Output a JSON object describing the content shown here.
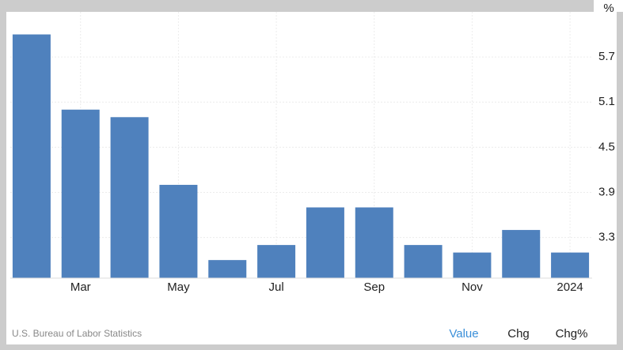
{
  "chart_data": {
    "type": "bar",
    "y_label": "%",
    "categories": [
      null,
      "Mar",
      null,
      "May",
      null,
      "Jul",
      null,
      "Sep",
      null,
      "Nov",
      null,
      "2024"
    ],
    "values": [
      6.0,
      5.0,
      4.9,
      4.0,
      3.0,
      3.2,
      3.7,
      3.7,
      3.2,
      3.1,
      3.4,
      3.1
    ],
    "color": "#4f81bd",
    "ylim": [
      2.76,
      6.3
    ],
    "yticks": [
      3.3,
      3.9,
      4.5,
      5.1,
      5.7
    ],
    "grid": true
  },
  "footer": {
    "source": "U.S. Bureau of Labor Statistics",
    "tabs": [
      "Value",
      "Chg",
      "Chg%"
    ],
    "active_tab_color": "#3a8fd9"
  }
}
